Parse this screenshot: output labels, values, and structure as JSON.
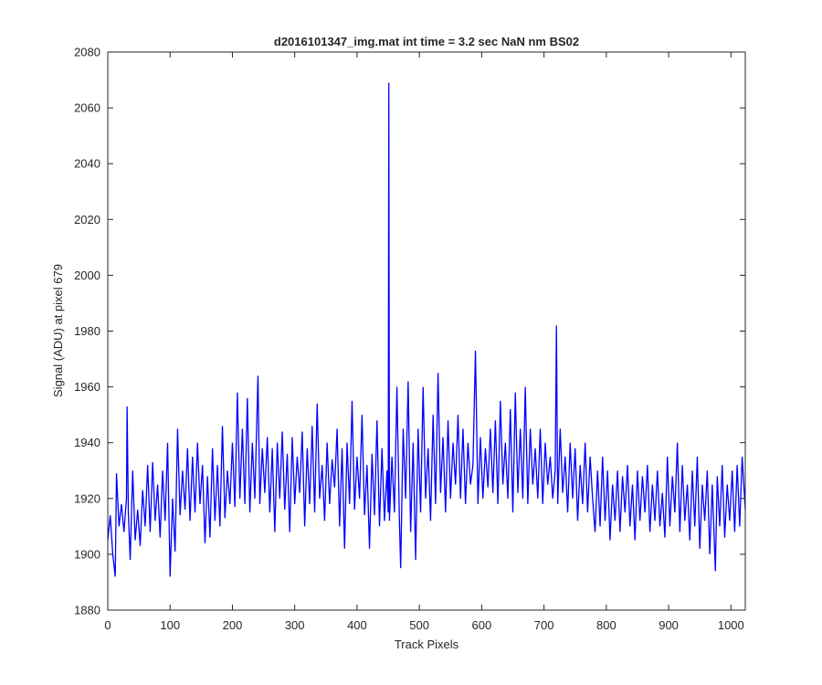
{
  "chart_data": {
    "type": "line",
    "title": "d2016101347_img.mat int time = 3.2 sec  NaN nm BS02",
    "x_label": "Track Pixels",
    "y_label": "Signal (ADU) at pixel 679",
    "color": "#0000ff",
    "xlim": [
      0,
      1023
    ],
    "ylim": [
      1880,
      2080
    ],
    "xticks": [
      0,
      100,
      200,
      300,
      400,
      500,
      600,
      700,
      800,
      900,
      1000
    ],
    "yticks": [
      1880,
      1900,
      1920,
      1940,
      1960,
      1980,
      2000,
      2020,
      2040,
      2060,
      2080
    ],
    "x": [
      0,
      4,
      8,
      12,
      14,
      18,
      22,
      26,
      30,
      31,
      33,
      36,
      40,
      44,
      48,
      52,
      56,
      60,
      64,
      68,
      72,
      76,
      80,
      84,
      88,
      92,
      96,
      100,
      104,
      108,
      112,
      116,
      120,
      124,
      128,
      132,
      136,
      140,
      144,
      148,
      152,
      156,
      160,
      164,
      168,
      172,
      176,
      180,
      184,
      188,
      192,
      196,
      200,
      204,
      208,
      212,
      216,
      220,
      224,
      228,
      232,
      236,
      241,
      244,
      248,
      252,
      256,
      260,
      264,
      268,
      272,
      276,
      280,
      284,
      288,
      292,
      296,
      300,
      304,
      308,
      312,
      316,
      320,
      324,
      328,
      332,
      336,
      340,
      344,
      348,
      352,
      356,
      360,
      364,
      368,
      372,
      376,
      380,
      384,
      388,
      392,
      396,
      400,
      404,
      408,
      412,
      416,
      420,
      424,
      428,
      432,
      436,
      440,
      444,
      448,
      450,
      451,
      452,
      456,
      460,
      464,
      468,
      470,
      474,
      478,
      482,
      486,
      490,
      494,
      498,
      502,
      506,
      510,
      514,
      518,
      522,
      526,
      530,
      534,
      538,
      542,
      546,
      550,
      554,
      558,
      562,
      566,
      570,
      574,
      578,
      582,
      586,
      590,
      594,
      598,
      602,
      606,
      610,
      614,
      618,
      622,
      626,
      630,
      634,
      638,
      642,
      646,
      650,
      654,
      658,
      662,
      666,
      670,
      674,
      678,
      682,
      686,
      690,
      694,
      698,
      702,
      706,
      710,
      714,
      718,
      720,
      722,
      726,
      730,
      734,
      738,
      742,
      746,
      750,
      754,
      758,
      762,
      766,
      770,
      774,
      778,
      782,
      786,
      790,
      794,
      798,
      802,
      806,
      810,
      814,
      818,
      822,
      826,
      830,
      834,
      838,
      842,
      846,
      850,
      854,
      858,
      862,
      866,
      870,
      874,
      878,
      882,
      886,
      890,
      894,
      898,
      902,
      906,
      910,
      914,
      918,
      922,
      926,
      930,
      934,
      938,
      942,
      946,
      950,
      954,
      958,
      962,
      966,
      970,
      975,
      978,
      982,
      986,
      990,
      994,
      998,
      1002,
      1006,
      1010,
      1014,
      1018,
      1023
    ],
    "values": [
      1905,
      1914,
      1900,
      1892,
      1929,
      1910,
      1918,
      1908,
      1920,
      1953,
      1915,
      1898,
      1930,
      1905,
      1916,
      1903,
      1923,
      1910,
      1932,
      1908,
      1933,
      1912,
      1925,
      1906,
      1930,
      1912,
      1940,
      1892,
      1920,
      1901,
      1945,
      1914,
      1930,
      1916,
      1938,
      1912,
      1935,
      1915,
      1940,
      1918,
      1932,
      1904,
      1928,
      1906,
      1938,
      1912,
      1932,
      1910,
      1946,
      1913,
      1930,
      1918,
      1940,
      1917,
      1958,
      1920,
      1945,
      1918,
      1956,
      1915,
      1940,
      1920,
      1964,
      1918,
      1938,
      1922,
      1942,
      1915,
      1938,
      1908,
      1940,
      1920,
      1944,
      1916,
      1936,
      1908,
      1942,
      1918,
      1935,
      1922,
      1944,
      1910,
      1938,
      1918,
      1946,
      1915,
      1954,
      1920,
      1932,
      1912,
      1940,
      1918,
      1934,
      1924,
      1945,
      1910,
      1938,
      1902,
      1940,
      1918,
      1955,
      1916,
      1935,
      1920,
      1950,
      1914,
      1932,
      1902,
      1936,
      1914,
      1948,
      1910,
      1938,
      1912,
      1930,
      1915,
      2069,
      1912,
      1935,
      1915,
      1960,
      1912,
      1895,
      1945,
      1920,
      1962,
      1908,
      1940,
      1898,
      1945,
      1915,
      1960,
      1920,
      1938,
      1912,
      1950,
      1918,
      1965,
      1922,
      1942,
      1915,
      1948,
      1920,
      1940,
      1925,
      1950,
      1920,
      1945,
      1918,
      1940,
      1925,
      1932,
      1973,
      1918,
      1942,
      1920,
      1938,
      1924,
      1945,
      1922,
      1948,
      1918,
      1955,
      1925,
      1940,
      1920,
      1952,
      1915,
      1958,
      1922,
      1945,
      1920,
      1960,
      1918,
      1945,
      1925,
      1938,
      1920,
      1945,
      1918,
      1940,
      1925,
      1935,
      1920,
      1930,
      1982,
      1918,
      1945,
      1922,
      1935,
      1915,
      1940,
      1920,
      1938,
      1912,
      1932,
      1918,
      1940,
      1915,
      1935,
      1920,
      1908,
      1930,
      1910,
      1935,
      1912,
      1930,
      1905,
      1925,
      1912,
      1930,
      1908,
      1928,
      1915,
      1932,
      1910,
      1925,
      1905,
      1930,
      1912,
      1928,
      1915,
      1932,
      1908,
      1925,
      1912,
      1930,
      1910,
      1922,
      1906,
      1935,
      1910,
      1928,
      1915,
      1940,
      1908,
      1932,
      1912,
      1925,
      1905,
      1930,
      1910,
      1935,
      1902,
      1925,
      1912,
      1930,
      1900,
      1925,
      1894,
      1928,
      1910,
      1932,
      1906,
      1925,
      1912,
      1930,
      1908,
      1932,
      1910,
      1935,
      1916
    ]
  }
}
